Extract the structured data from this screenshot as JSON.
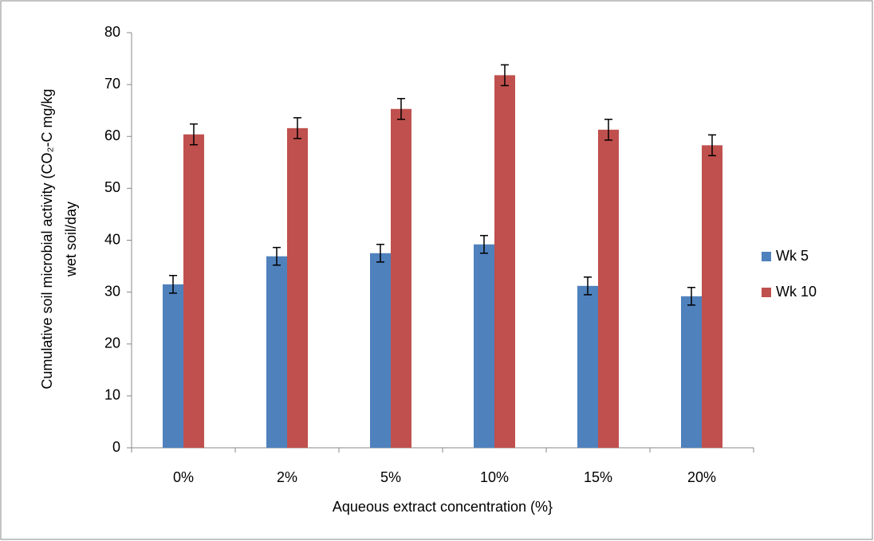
{
  "chart_data": {
    "type": "bar",
    "ylabel": [
      "Cumulative soil microbial activity (CO₂-C mg/kg",
      "wet soil/day"
    ],
    "xlabel": "Aqueous extract concentration (%}",
    "categories": [
      "0%",
      "2%",
      "5%",
      "10%",
      "15%",
      "20%"
    ],
    "series": [
      {
        "name": "Wk 5",
        "color": "#4f81bd",
        "values": [
          31.5,
          36.9,
          37.5,
          39.2,
          31.2,
          29.2
        ],
        "errors": [
          1.7,
          1.7,
          1.7,
          1.7,
          1.7,
          1.7
        ]
      },
      {
        "name": "Wk 10",
        "color": "#c0504d",
        "values": [
          60.4,
          61.6,
          65.3,
          71.8,
          61.3,
          58.3
        ],
        "errors": [
          2.0,
          2.0,
          2.0,
          2.0,
          2.0,
          2.0
        ]
      }
    ],
    "ylim": [
      0,
      80
    ],
    "yticks": [
      0,
      10,
      20,
      30,
      40,
      50,
      60,
      70,
      80
    ],
    "grid": false,
    "legend": "right"
  }
}
